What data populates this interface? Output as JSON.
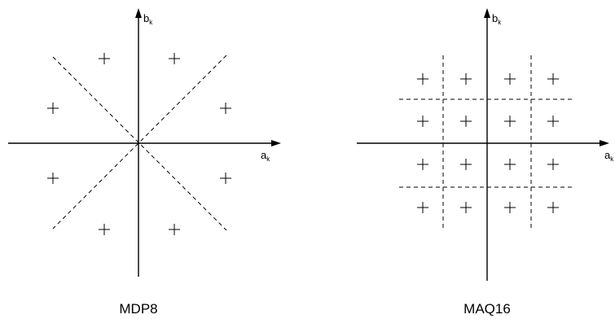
{
  "diagrams": [
    {
      "caption": "MDP8",
      "x_axis_label": "a",
      "x_axis_sub": "k",
      "y_axis_label": "b",
      "y_axis_sub": "k",
      "constellation": "8-PSK",
      "boundaries": "radial dashed lines at 45 degrees"
    },
    {
      "caption": "MAQ16",
      "x_axis_label": "a",
      "x_axis_sub": "k",
      "y_axis_label": "b",
      "y_axis_sub": "k",
      "constellation": "4x4 square grid",
      "boundaries": "dashed rectangular grid"
    }
  ],
  "colors": {
    "stroke": "#000000",
    "background": "#ffffff"
  }
}
